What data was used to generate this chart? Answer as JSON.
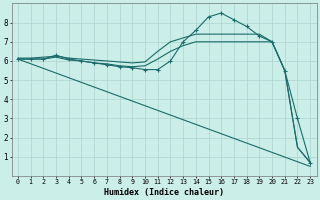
{
  "xlabel": "Humidex (Indice chaleur)",
  "bg_color": "#cceee8",
  "grid_color": "#aad4ce",
  "line_color": "#1a6b6b",
  "xlim": [
    -0.5,
    23.5
  ],
  "ylim": [
    0,
    9
  ],
  "xticks": [
    0,
    1,
    2,
    3,
    4,
    5,
    6,
    7,
    8,
    9,
    10,
    11,
    12,
    13,
    14,
    15,
    16,
    17,
    18,
    19,
    20,
    21,
    22,
    23
  ],
  "yticks": [
    1,
    2,
    3,
    4,
    5,
    6,
    7,
    8
  ],
  "series": [
    {
      "x": [
        0,
        1,
        2,
        3,
        4,
        5,
        6,
        7,
        8,
        9,
        10,
        11,
        12,
        13,
        14,
        15,
        16,
        17,
        18,
        19,
        20,
        21,
        22,
        23
      ],
      "y": [
        6.1,
        6.1,
        6.1,
        6.3,
        6.1,
        6.0,
        5.9,
        5.8,
        5.7,
        5.65,
        5.55,
        5.55,
        6.0,
        7.0,
        7.6,
        8.3,
        8.5,
        8.15,
        7.8,
        7.3,
        7.0,
        5.5,
        3.0,
        0.7
      ],
      "marker": "+"
    },
    {
      "x": [
        0,
        1,
        2,
        3,
        4,
        5,
        6,
        7,
        8,
        9,
        10,
        11,
        12,
        13,
        14,
        15,
        16,
        17,
        18,
        19,
        20,
        21,
        22,
        23
      ],
      "y": [
        6.15,
        6.15,
        6.2,
        6.25,
        6.15,
        6.1,
        6.05,
        6.0,
        5.95,
        5.9,
        5.95,
        6.5,
        7.0,
        7.2,
        7.4,
        7.4,
        7.4,
        7.4,
        7.4,
        7.4,
        7.0,
        5.5,
        1.5,
        0.7
      ],
      "marker": null
    },
    {
      "x": [
        0,
        1,
        2,
        3,
        4,
        5,
        6,
        7,
        8,
        9,
        10,
        11,
        12,
        13,
        14,
        15,
        16,
        17,
        18,
        19,
        20,
        21,
        22,
        23
      ],
      "y": [
        6.1,
        6.1,
        6.1,
        6.2,
        6.05,
        6.0,
        5.9,
        5.85,
        5.75,
        5.7,
        5.75,
        6.1,
        6.5,
        6.8,
        7.0,
        7.0,
        7.0,
        7.0,
        7.0,
        7.0,
        7.0,
        5.5,
        1.5,
        0.7
      ],
      "marker": null
    },
    {
      "x": [
        0,
        23
      ],
      "y": [
        6.1,
        0.5
      ],
      "marker": null
    }
  ]
}
